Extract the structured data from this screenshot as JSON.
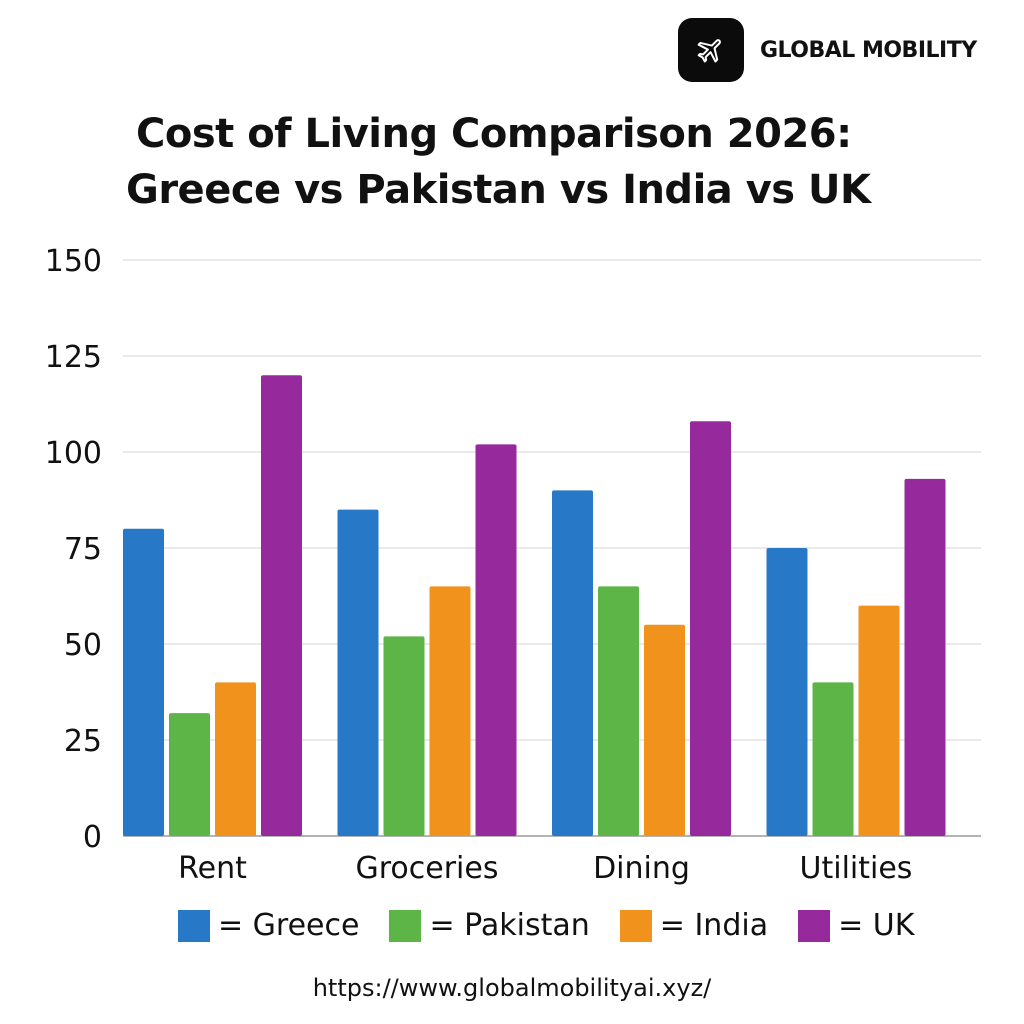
{
  "brand": {
    "name": "GLOBAL MOBILITY",
    "icon": "airplane-icon"
  },
  "url": "https://www.globalmobilityai.xyz/",
  "chart_data": {
    "type": "bar",
    "title_lines": [
      "Cost of Living Comparison 2026:",
      "Greece vs Pakistan vs India vs UK"
    ],
    "categories": [
      "Rent",
      "Groceries",
      "Dining",
      "Utilities"
    ],
    "series": [
      {
        "name": "Greece",
        "color": "#2878c8",
        "values": [
          80,
          85,
          90,
          75
        ]
      },
      {
        "name": "Pakistan",
        "color": "#5db548",
        "values": [
          32,
          52,
          65,
          40
        ]
      },
      {
        "name": "India",
        "color": "#f0921c",
        "values": [
          40,
          65,
          55,
          60
        ]
      },
      {
        "name": "UK",
        "color": "#962a9c",
        "values": [
          120,
          102,
          108,
          93
        ]
      }
    ],
    "legend_labels": [
      "= Greece",
      "= Pakistan",
      "= India",
      "= UK"
    ],
    "legend_position": "bottom",
    "yticks": [
      0,
      25,
      50,
      75,
      100,
      125,
      150
    ],
    "ylim": [
      0,
      150
    ],
    "grid": true,
    "xlabel": "",
    "ylabel": ""
  }
}
